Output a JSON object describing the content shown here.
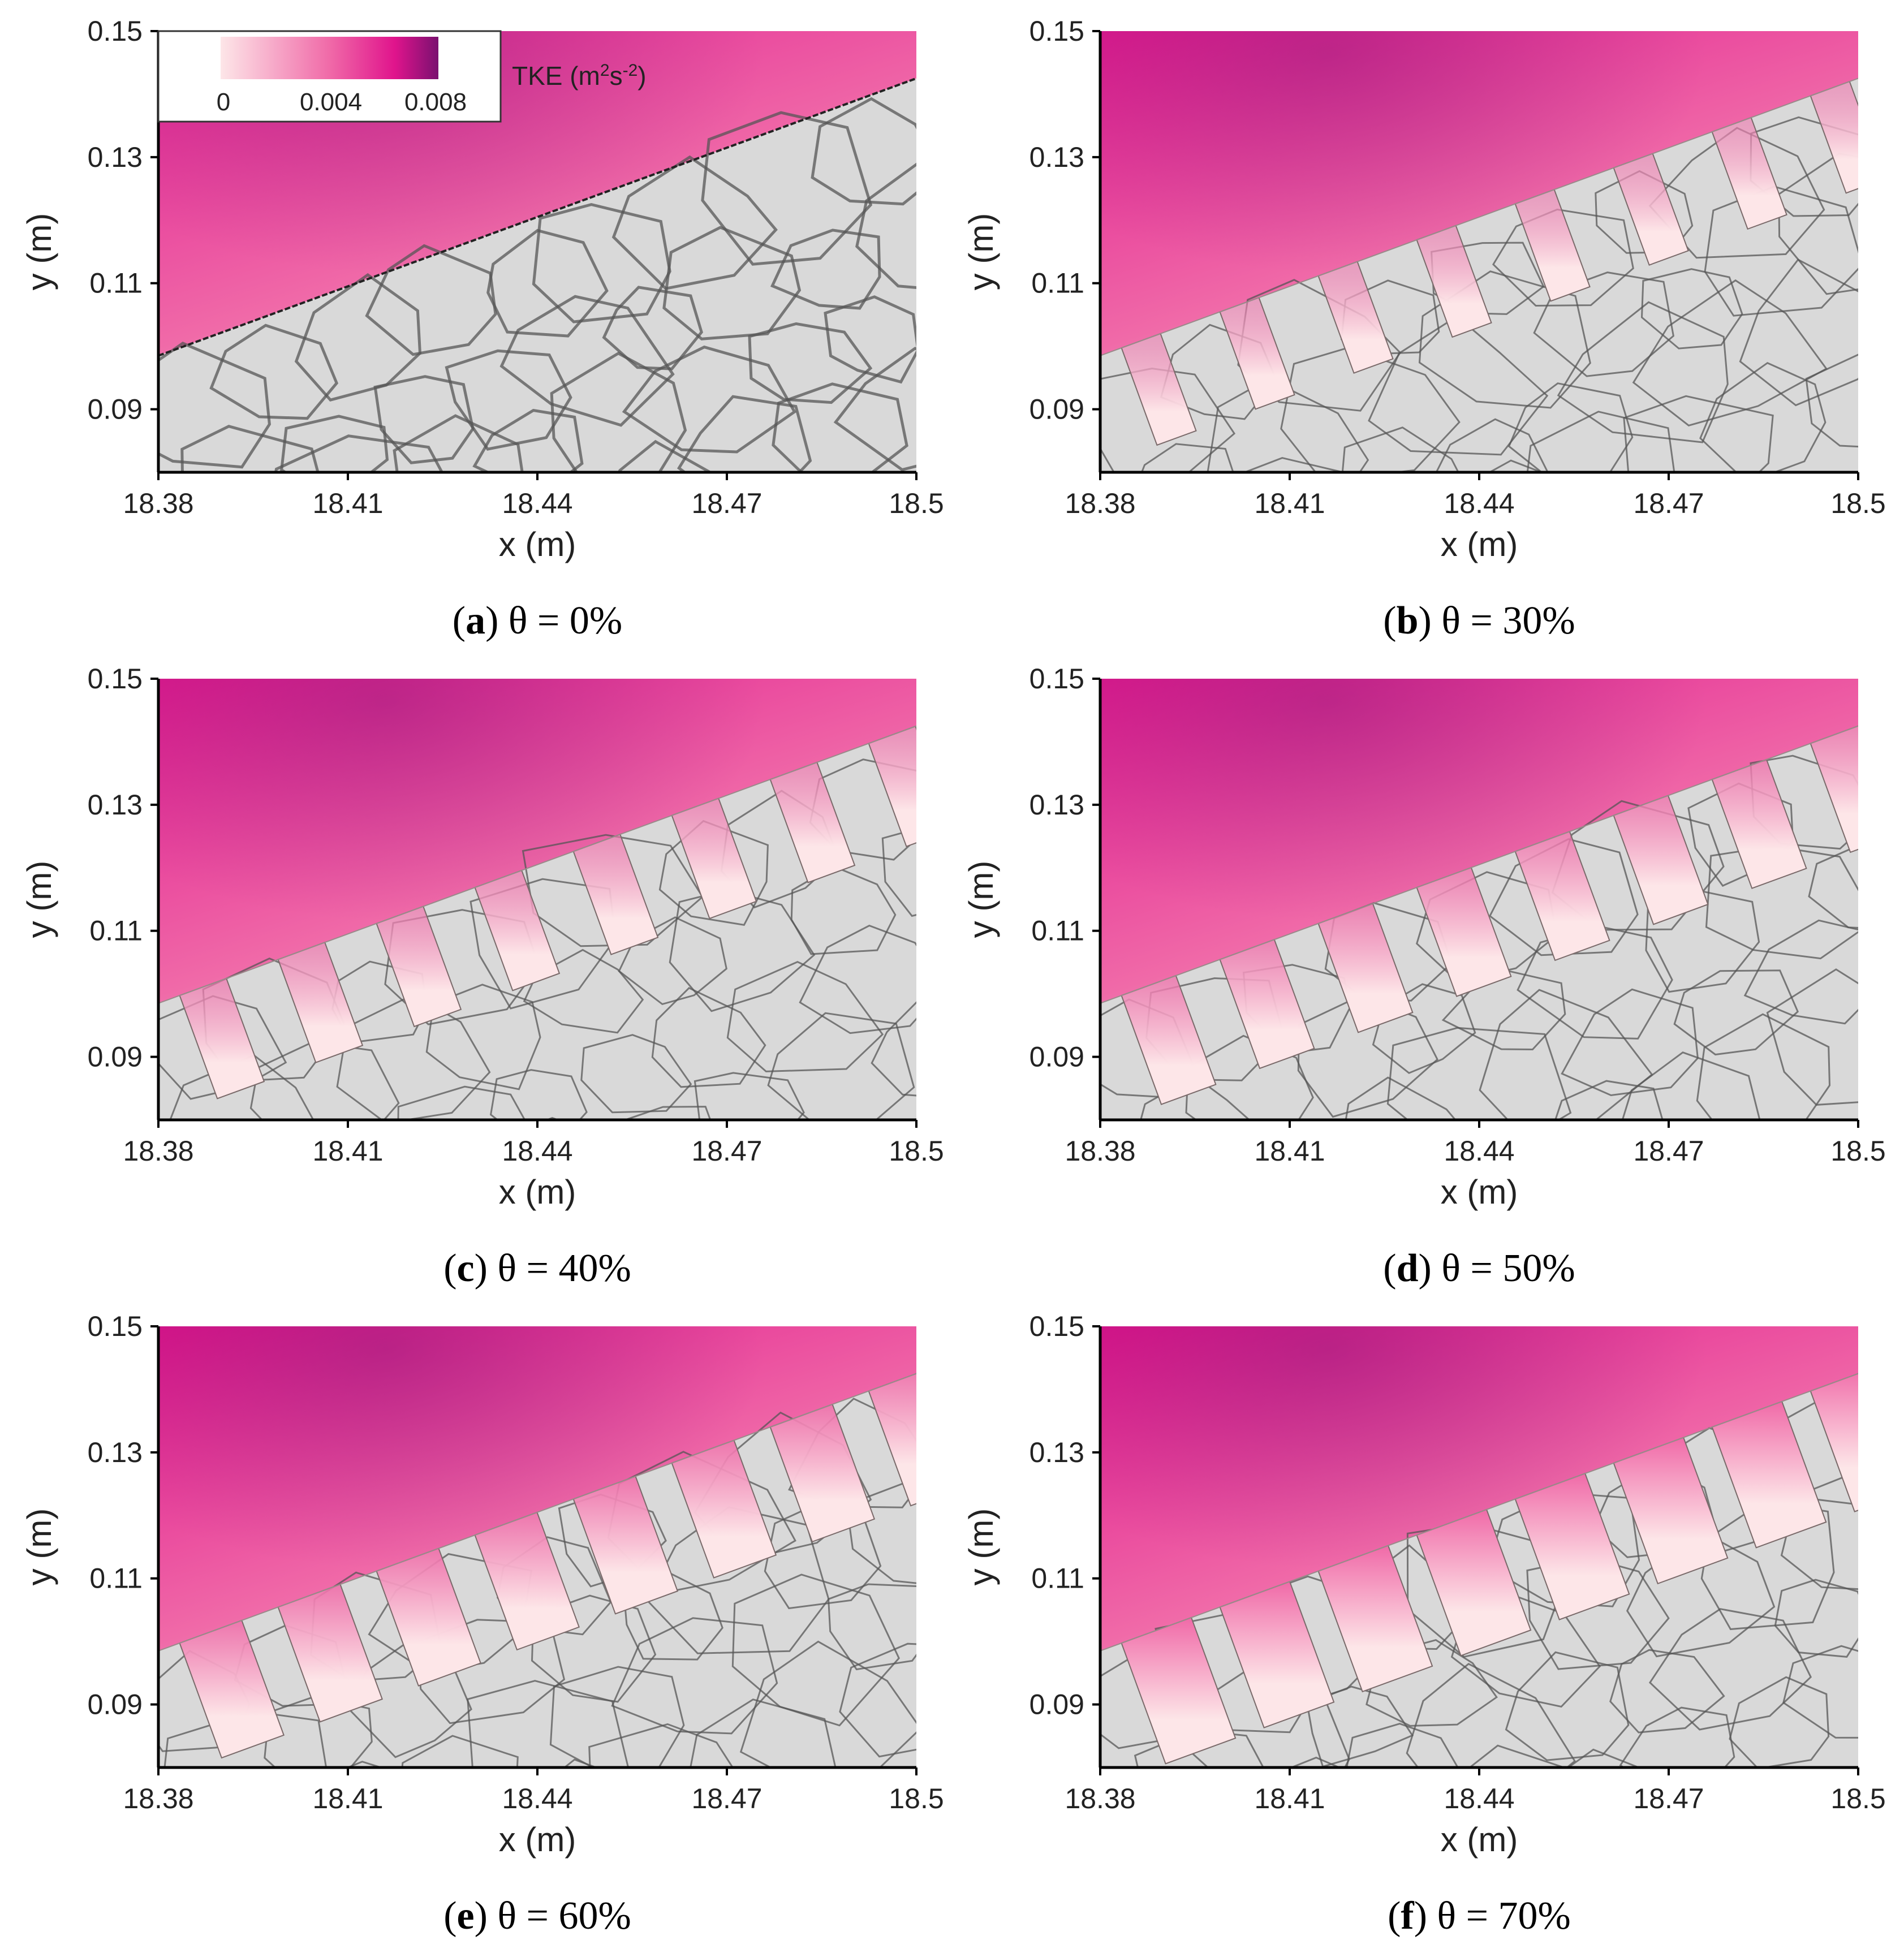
{
  "chart_data": [
    {
      "type": "heatmap",
      "panel_id": "a",
      "caption_letter": "a",
      "caption_text": "θ = 0%",
      "theta_percent": 0,
      "xlabel": "x (m)",
      "ylabel": "y (m)",
      "xticks": [
        "18.38",
        "18.41",
        "18.44",
        "18.47",
        "18.5"
      ],
      "yticks": [
        "0.09",
        "0.11",
        "0.13",
        "0.15"
      ],
      "xlim": [
        18.38,
        18.5
      ],
      "ylim": [
        0.08,
        0.15
      ],
      "field": "TKE",
      "field_unit": "m²s⁻²",
      "tke_max_approx": 0.006,
      "legend": {
        "title_prefix": "TKE (m",
        "title_exp1": "2",
        "title_mid": "s",
        "title_exp2": "-2",
        "title_suffix": ")",
        "ticks": [
          "0",
          "0.004",
          "0.008"
        ],
        "range": [
          0,
          0.008
        ]
      }
    },
    {
      "type": "heatmap",
      "panel_id": "b",
      "caption_letter": "b",
      "caption_text": "θ = 30%",
      "theta_percent": 30,
      "xlabel": "x (m)",
      "ylabel": "y (m)",
      "xticks": [
        "18.38",
        "18.41",
        "18.44",
        "18.47",
        "18.5"
      ],
      "yticks": [
        "0.09",
        "0.11",
        "0.13",
        "0.15"
      ],
      "xlim": [
        18.38,
        18.5
      ],
      "ylim": [
        0.08,
        0.15
      ],
      "field": "TKE",
      "field_unit": "m²s⁻²",
      "tke_max_approx": 0.007
    },
    {
      "type": "heatmap",
      "panel_id": "c",
      "caption_letter": "c",
      "caption_text": "θ = 40%",
      "theta_percent": 40,
      "xlabel": "x (m)",
      "ylabel": "y (m)",
      "xticks": [
        "18.38",
        "18.41",
        "18.44",
        "18.47",
        "18.5"
      ],
      "yticks": [
        "0.09",
        "0.11",
        "0.13",
        "0.15"
      ],
      "xlim": [
        18.38,
        18.5
      ],
      "ylim": [
        0.08,
        0.15
      ],
      "field": "TKE",
      "field_unit": "m²s⁻²",
      "tke_max_approx": 0.007
    },
    {
      "type": "heatmap",
      "panel_id": "d",
      "caption_letter": "d",
      "caption_text": "θ = 50%",
      "theta_percent": 50,
      "xlabel": "x (m)",
      "ylabel": "y (m)",
      "xticks": [
        "18.38",
        "18.41",
        "18.44",
        "18.47",
        "18.5"
      ],
      "yticks": [
        "0.09",
        "0.11",
        "0.13",
        "0.15"
      ],
      "xlim": [
        18.38,
        18.5
      ],
      "ylim": [
        0.08,
        0.15
      ],
      "field": "TKE",
      "field_unit": "m²s⁻²",
      "tke_max_approx": 0.007
    },
    {
      "type": "heatmap",
      "panel_id": "e",
      "caption_letter": "e",
      "caption_text": "θ = 60%",
      "theta_percent": 60,
      "xlabel": "x (m)",
      "ylabel": "y (m)",
      "xticks": [
        "18.38",
        "18.41",
        "18.44",
        "18.47",
        "18.5"
      ],
      "yticks": [
        "0.09",
        "0.11",
        "0.13",
        "0.15"
      ],
      "xlim": [
        18.38,
        18.5
      ],
      "ylim": [
        0.08,
        0.15
      ],
      "field": "TKE",
      "field_unit": "m²s⁻²",
      "tke_max_approx": 0.008
    },
    {
      "type": "heatmap",
      "panel_id": "f",
      "caption_letter": "f",
      "caption_text": "θ = 70%",
      "theta_percent": 70,
      "xlabel": "x (m)",
      "ylabel": "y (m)",
      "xticks": [
        "18.38",
        "18.41",
        "18.44",
        "18.47",
        "18.5"
      ],
      "yticks": [
        "0.09",
        "0.11",
        "0.13",
        "0.15"
      ],
      "xlim": [
        18.38,
        18.5
      ],
      "ylim": [
        0.08,
        0.15
      ],
      "field": "TKE",
      "field_unit": "m²s⁻²",
      "tke_max_approx": 0.008
    }
  ],
  "colors": {
    "tke_low": "#fde6e8",
    "tke_mid": "#f06aa8",
    "tke_high": "#e0148c",
    "tke_max": "#7a1070",
    "solid": "#d9d9d9",
    "grain_line": "#555555",
    "axis": "#000000"
  }
}
